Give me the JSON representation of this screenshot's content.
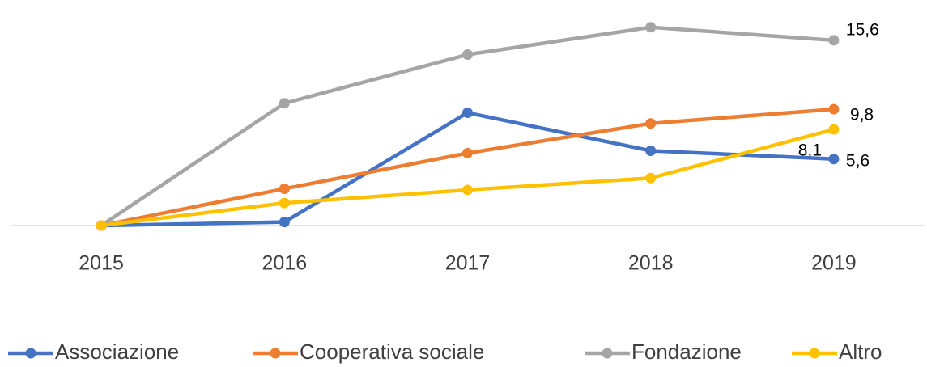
{
  "chart_data": {
    "type": "line",
    "categories": [
      "2015",
      "2016",
      "2017",
      "2018",
      "2019"
    ],
    "series": [
      {
        "name": "Associazione",
        "color": "#4472c4",
        "values": [
          0,
          0.3,
          9.5,
          6.3,
          5.6
        ],
        "value_labels": [
          null,
          null,
          null,
          null,
          "5,6"
        ]
      },
      {
        "name": "Cooperativa sociale",
        "color": "#ed7d31",
        "values": [
          0,
          3.1,
          6.1,
          8.6,
          9.8
        ],
        "value_labels": [
          null,
          null,
          null,
          null,
          "9,8"
        ]
      },
      {
        "name": "Fondazione",
        "color": "#a5a5a5",
        "values": [
          0,
          10.3,
          14.4,
          16.7,
          15.6
        ],
        "value_labels": [
          null,
          null,
          null,
          null,
          "15,6"
        ]
      },
      {
        "name": "Altro",
        "color": "#ffc000",
        "values": [
          0,
          1.9,
          3.0,
          4.0,
          8.1
        ],
        "value_labels": [
          null,
          null,
          null,
          null,
          "8,1"
        ]
      }
    ],
    "ylim": [
      0,
      17.5
    ]
  }
}
